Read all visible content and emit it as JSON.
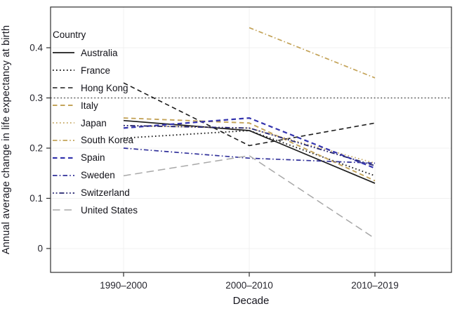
{
  "figure": {
    "ylabel": "Annual average change in life expectancy at birth",
    "xlabel": "Decade",
    "legend_title": "Country",
    "background": "#ffffff",
    "frame_color": "#2e2e2e",
    "grid_color": "#f0f0f0",
    "tick_color": "#2e2e2e",
    "tick_label_color": "#26262e"
  },
  "chart_data": {
    "type": "line",
    "title": "",
    "xlabel": "Decade",
    "ylabel": "Annual average change in life expectancy at birth",
    "categories": [
      "1990–2000",
      "2000–2010",
      "2010–2019"
    ],
    "y_tick_labels": [
      "0",
      "0.1",
      "0.2",
      "0.3",
      "0.4"
    ],
    "y_tick_values": [
      0,
      0.1,
      0.2,
      0.3,
      0.4
    ],
    "ylim": [
      -0.048,
      0.481
    ],
    "grid": true,
    "legend_position": "inside-top-left",
    "reference_line": {
      "y": 0.3,
      "linetype": "dotted",
      "color": "#4d4d4d"
    },
    "series": [
      {
        "name": "Australia",
        "color": "#1c1c1c",
        "linetype": "solid",
        "width": 1.7,
        "values": [
          0.255,
          0.235,
          0.13
        ]
      },
      {
        "name": "France",
        "color": "#1c1c1c",
        "linetype": "dotted",
        "width": 1.9,
        "values": [
          0.22,
          0.235,
          0.145
        ]
      },
      {
        "name": "Hong Kong",
        "color": "#1c1c1c",
        "linetype": "dashed",
        "width": 1.6,
        "values": [
          0.33,
          0.205,
          0.25
        ]
      },
      {
        "name": "Italy",
        "color": "#c4a45a",
        "linetype": "dashed",
        "width": 1.9,
        "values": [
          0.26,
          0.25,
          0.135
        ]
      },
      {
        "name": "Japan",
        "color": "#c9ad6d",
        "linetype": "dotted",
        "width": 1.9,
        "values": [
          0.245,
          0.24,
          0.17
        ]
      },
      {
        "name": "South Korea",
        "color": "#c4a45a",
        "linetype": "dashdot",
        "width": 1.7,
        "values": [
          null,
          0.44,
          0.34
        ]
      },
      {
        "name": "Spain",
        "color": "#3434ae",
        "linetype": "dashed",
        "width": 2.2,
        "values": [
          0.24,
          0.26,
          0.16
        ]
      },
      {
        "name": "Sweden",
        "color": "#30309a",
        "linetype": "dashdot",
        "width": 1.7,
        "values": [
          0.2,
          0.18,
          0.17
        ]
      },
      {
        "name": "Switzerland",
        "color": "#23236e",
        "linetype": "dotdotdash",
        "width": 1.8,
        "values": [
          0.245,
          0.24,
          0.165
        ]
      },
      {
        "name": "United States",
        "color": "#a8a8a8",
        "linetype": "longdash",
        "width": 1.5,
        "values": [
          0.145,
          0.185,
          0.02
        ]
      }
    ]
  }
}
